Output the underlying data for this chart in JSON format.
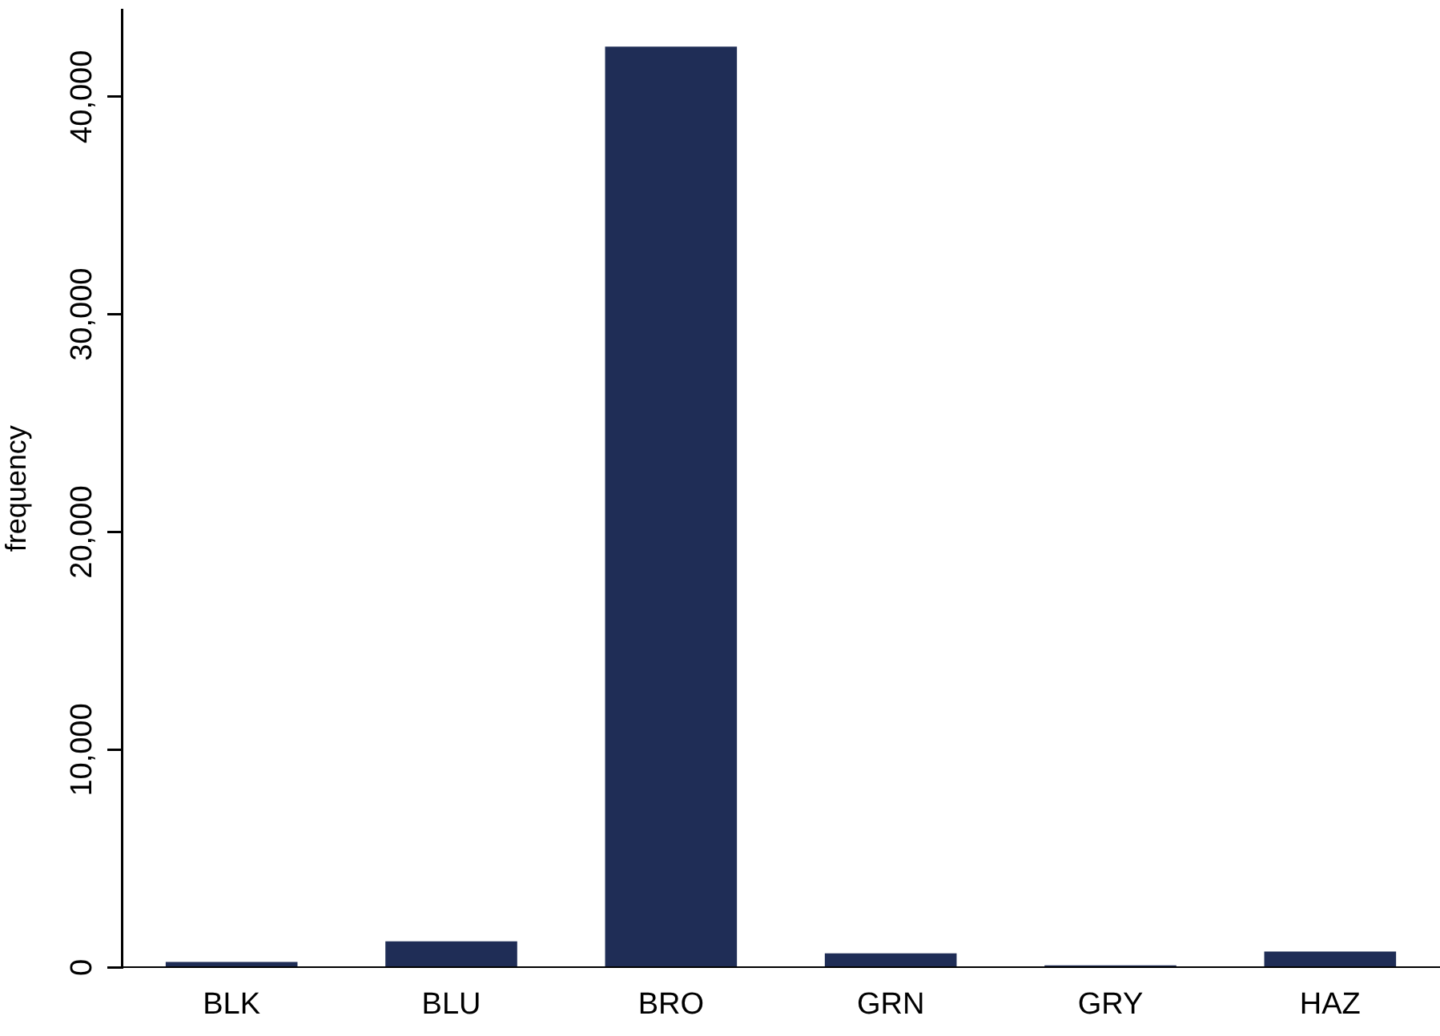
{
  "chart_data": {
    "type": "bar",
    "ylabel": "frequency",
    "categories": [
      "BLK",
      "BLU",
      "BRO",
      "GRN",
      "GRY",
      "HAZ"
    ],
    "values": [
      250,
      1200,
      42300,
      650,
      100,
      730
    ],
    "color": "#1f2d56",
    "ylim": [
      0,
      44000
    ],
    "yticks": [
      {
        "value": 0,
        "label": "0"
      },
      {
        "value": 10000,
        "label": "10,000"
      },
      {
        "value": 20000,
        "label": "20,000"
      },
      {
        "value": 30000,
        "label": "30,000"
      },
      {
        "value": 40000,
        "label": "40,000"
      }
    ],
    "grid": false,
    "legend": false
  }
}
